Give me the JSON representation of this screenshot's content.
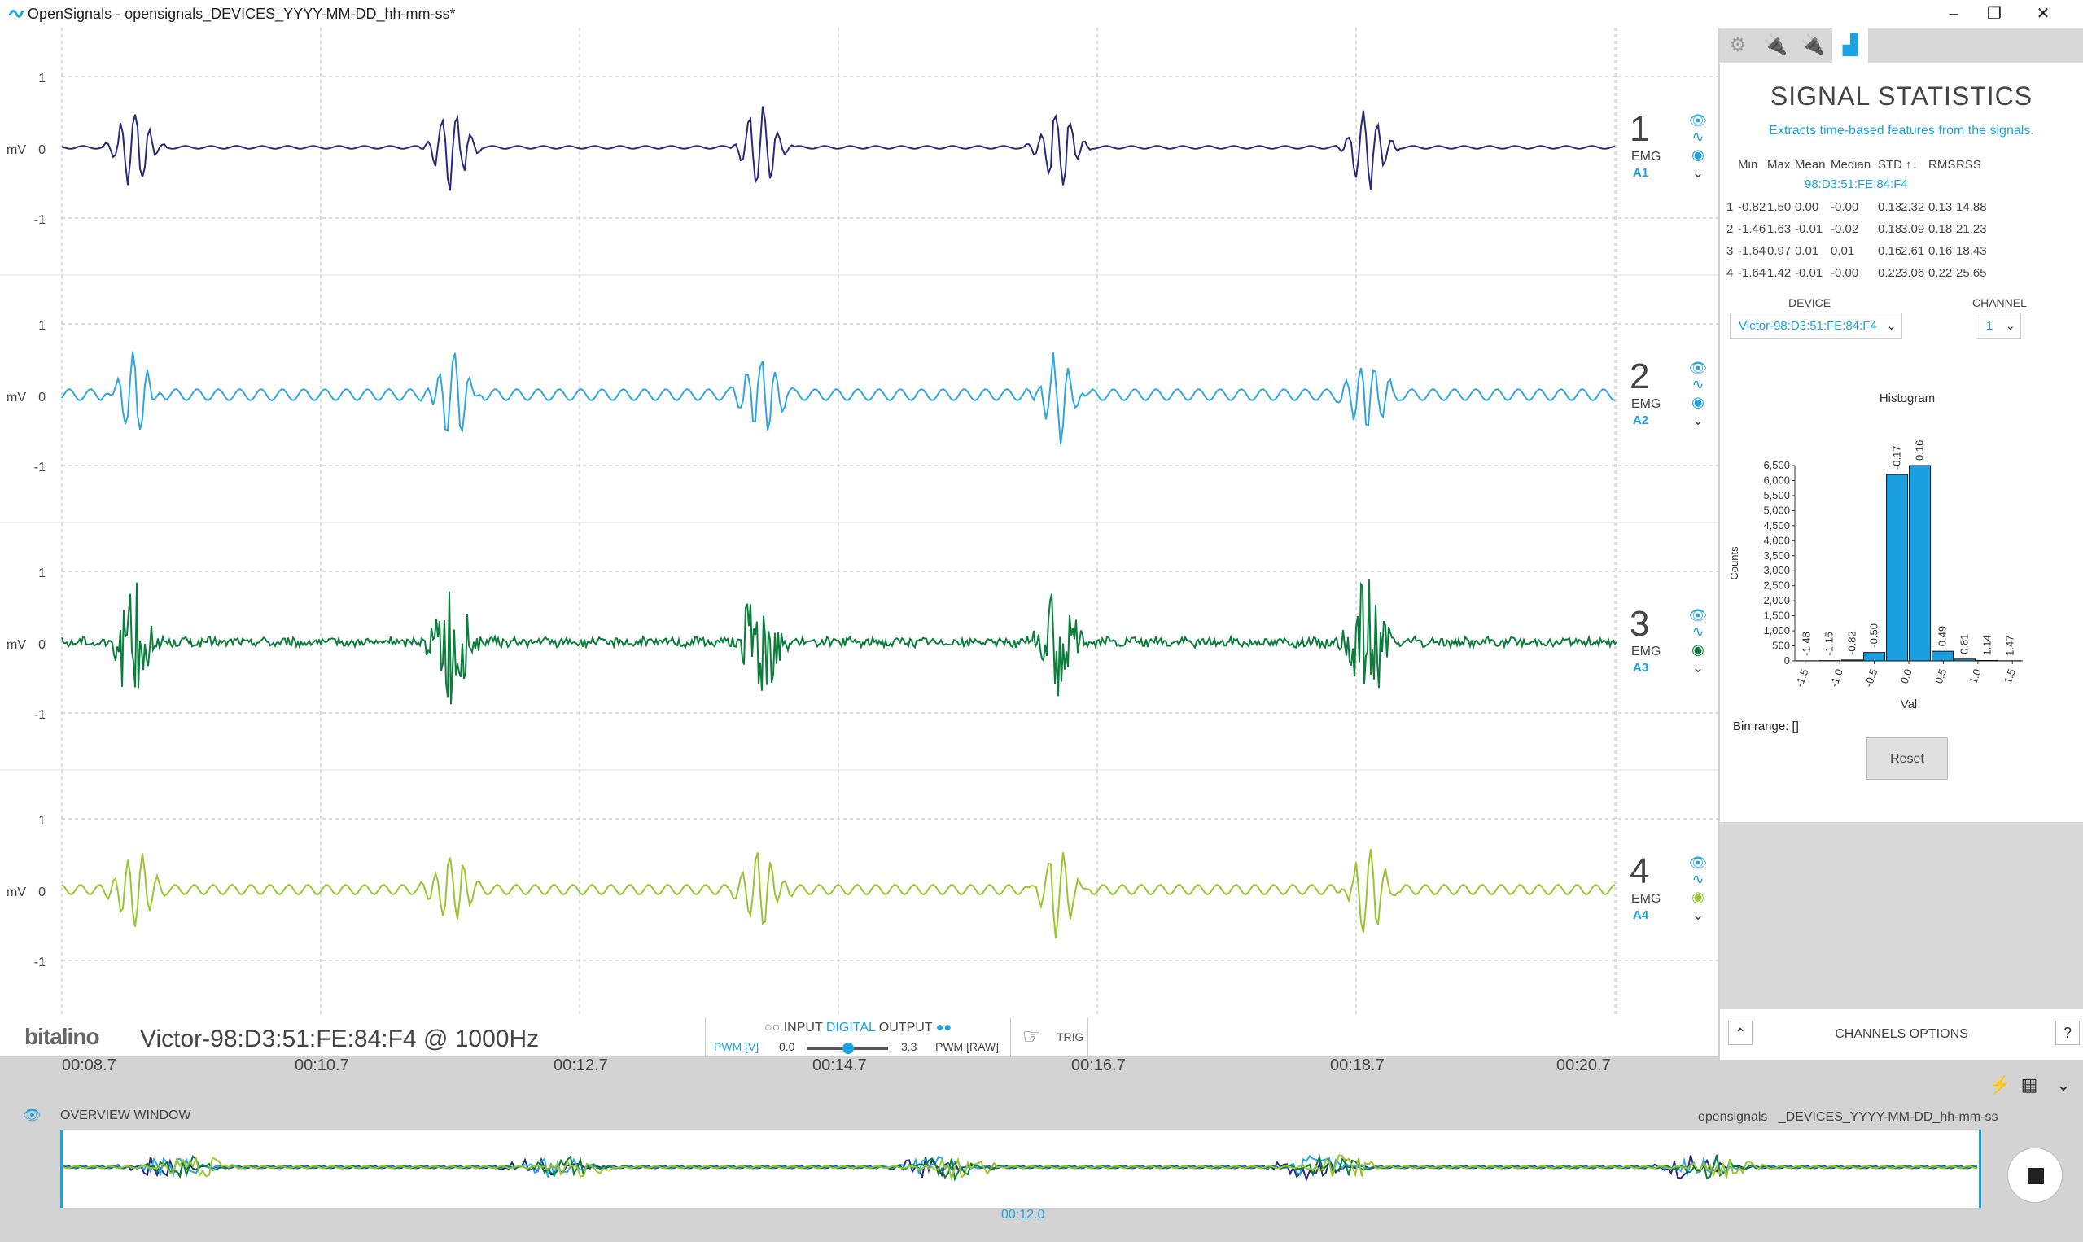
{
  "window": {
    "title": "OpenSignals - opensignals_DEVICES_YYYY-MM-DD_hh-mm-ss*",
    "minimize": "–",
    "restore": "❐",
    "close": "✕"
  },
  "channels": [
    {
      "num": "1",
      "type": "EMG",
      "port": "A1",
      "color": "#2b2a7a"
    },
    {
      "num": "2",
      "type": "EMG",
      "port": "A2",
      "color": "#2ea7e0"
    },
    {
      "num": "3",
      "type": "EMG",
      "port": "A3",
      "color": "#0b7d3c"
    },
    {
      "num": "4",
      "type": "EMG",
      "port": "A4",
      "color": "#9ac531"
    }
  ],
  "yaxis": {
    "unit": "mV",
    "top": "1",
    "mid": "0",
    "bottom": "-1"
  },
  "time_ticks": [
    "00:08.7",
    "00:10.7",
    "00:12.7",
    "00:14.7",
    "00:16.7",
    "00:18.7",
    "00:20.7"
  ],
  "statistics": {
    "title": "SIGNAL STATISTICS",
    "subtitle": "Extracts time-based features from the signals.",
    "headers": [
      "Min",
      "Max",
      "Mean",
      "Median",
      "STD",
      "↑↓",
      "RMS",
      "RSS"
    ],
    "device_row": "98:D3:51:FE:84:F4",
    "rows": [
      [
        "1",
        "-0.82",
        "1.50",
        "0.00",
        "-0.00",
        "0.13",
        "2.32",
        "0.13",
        "14.88"
      ],
      [
        "2",
        "-1.46",
        "1.63",
        "-0.01",
        "-0.02",
        "0.18",
        "3.09",
        "0.18",
        "21.23"
      ],
      [
        "3",
        "-1.64",
        "0.97",
        "0.01",
        "0.01",
        "0.16",
        "2.61",
        "0.16",
        "18.43"
      ],
      [
        "4",
        "-1.64",
        "1.42",
        "-0.01",
        "-0.00",
        "0.22",
        "3.06",
        "0.22",
        "25.65"
      ]
    ],
    "device_label": "DEVICE",
    "device_value": "Victor-98:D3:51:FE:84:F4",
    "channel_label": "CHANNEL",
    "channel_value": "1",
    "bin_range": "Bin range: []",
    "reset": "Reset"
  },
  "chart_data": {
    "type": "bar",
    "title": "Histogram",
    "xlabel": "Val",
    "ylabel": "Counts",
    "ylim": [
      0,
      6500
    ],
    "yticks": [
      "0",
      "500",
      "1,000",
      "1,500",
      "2,000",
      "2,500",
      "3,000",
      "3,500",
      "4,000",
      "4,500",
      "5,000",
      "5,500",
      "6,000",
      "6,500"
    ],
    "xticks": [
      "-1.5",
      "-1.0",
      "-0.5",
      "0.0",
      "0.5",
      "1.0",
      "1.5"
    ],
    "categories": [
      "-1.48",
      "-1.15",
      "-0.82",
      "-0.50",
      "-0.17",
      "0.16",
      "0.49",
      "0.81",
      "1.14",
      "1.47"
    ],
    "values": [
      5,
      10,
      30,
      280,
      6200,
      6500,
      320,
      60,
      15,
      5
    ],
    "color": "#1b9fe0"
  },
  "bottom": {
    "brand": "bitalino",
    "device_info": "Victor-98:D3:51:FE:84:F4 @ 1000Hz",
    "io_label_input": "INPUT",
    "io_label_digital": "DIGITAL",
    "io_label_output": "OUTPUT",
    "pwm_v": "PWM [V]",
    "pwm_min": "0.0",
    "pwm_max": "3.3",
    "pwm_raw": "PWM [RAW]",
    "trig": "TRIG"
  },
  "channels_options": "CHANNELS OPTIONS",
  "help": "?",
  "overview": {
    "label": "OVERVIEW WINDOW",
    "file_prefix": "opensignals",
    "file_suffix": "_DEVICES_YYYY-MM-DD_hh-mm-ss",
    "time": "00:12.0"
  }
}
